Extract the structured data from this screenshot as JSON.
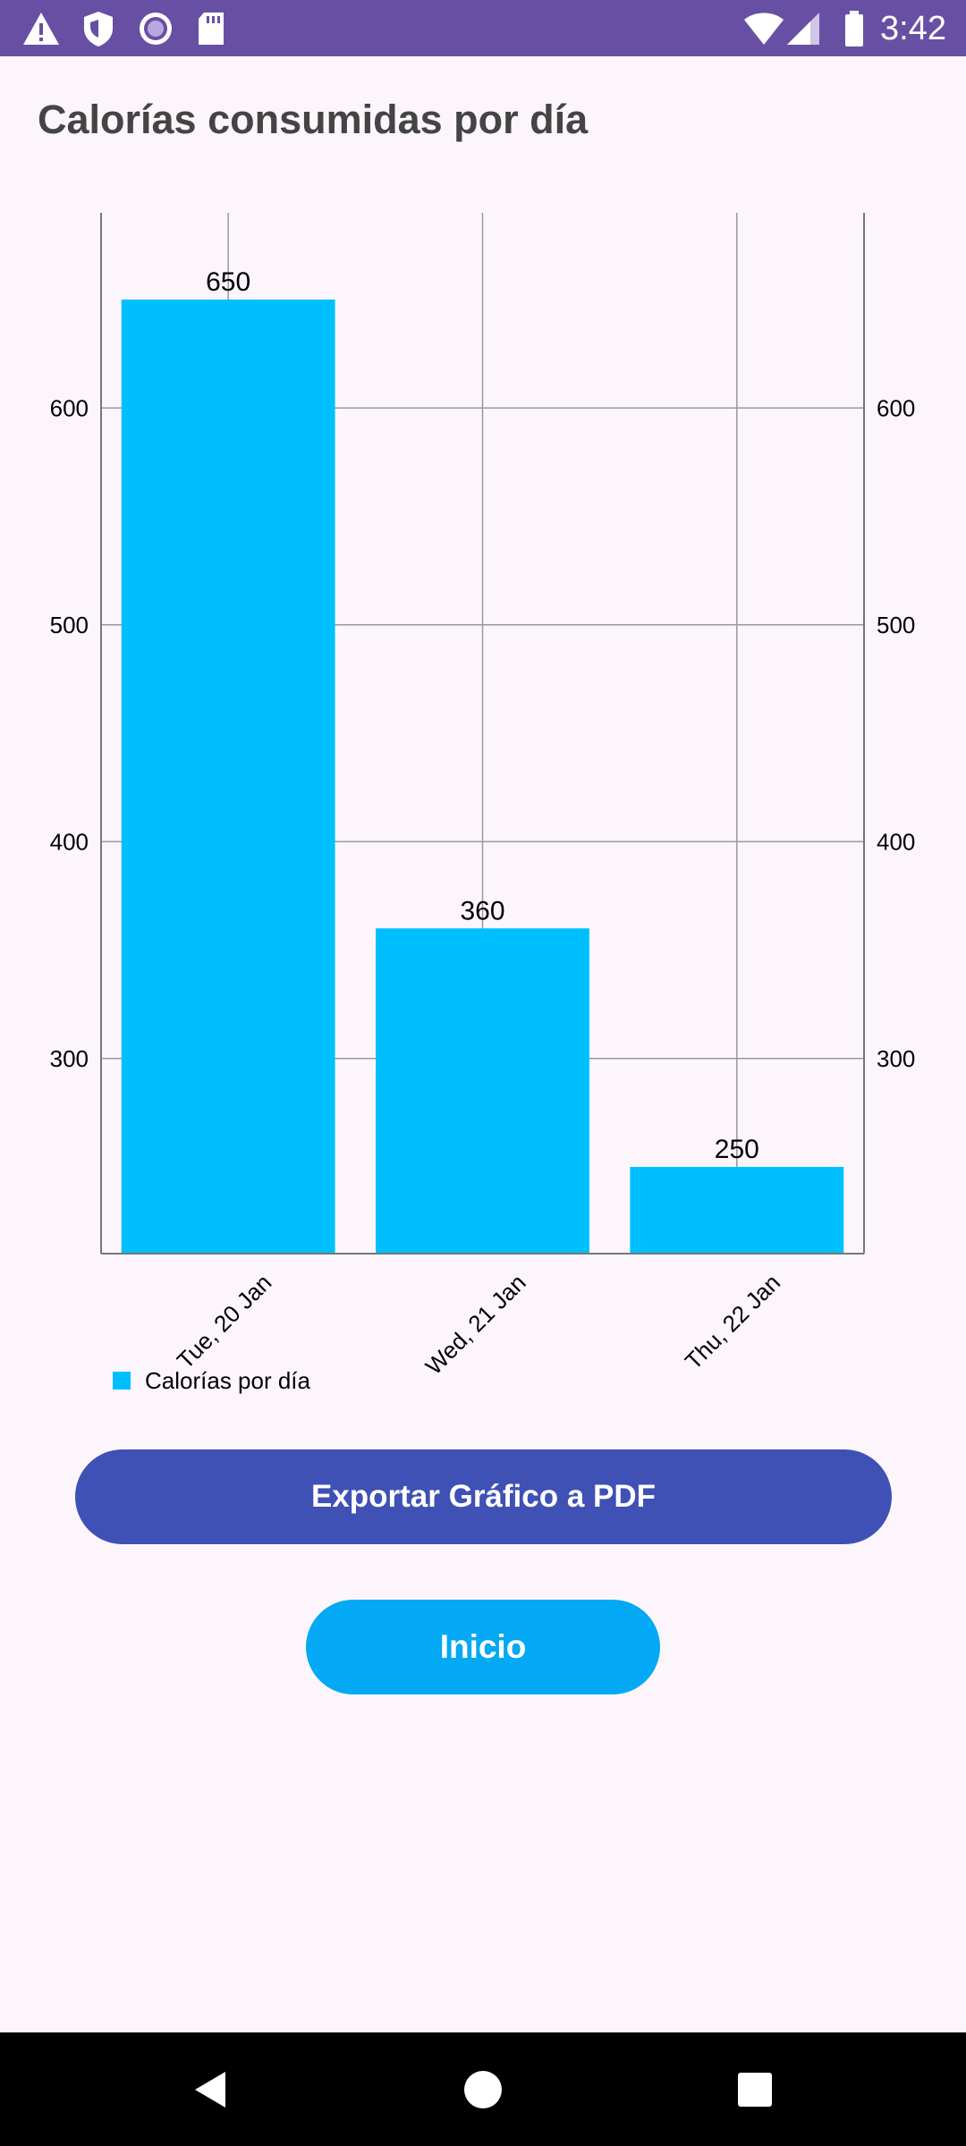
{
  "status_bar": {
    "time": "3:42",
    "icons_left": [
      "warning-icon",
      "shield-icon",
      "circle-record-icon",
      "sd-card-icon"
    ],
    "icons_right": [
      "wifi-icon",
      "cellular-signal-icon",
      "battery-icon"
    ],
    "background": "#6750a4"
  },
  "page": {
    "title": "Calorías consumidas por día"
  },
  "chart_data": {
    "type": "bar",
    "categories": [
      "Tue, 20 Jan",
      "Wed, 21 Jan",
      "Thu, 22 Jan"
    ],
    "series": [
      {
        "name": "Calorías por día",
        "values": [
          650,
          360,
          250
        ],
        "color": "#00bfff"
      }
    ],
    "data_labels": [
      "650",
      "360",
      "250"
    ],
    "y_ticks": [
      300,
      400,
      500,
      600
    ],
    "y_tick_labels": [
      "300",
      "400",
      "500",
      "600"
    ],
    "ylim": [
      210,
      690
    ],
    "y_axis_left": true,
    "y_axis_right": true,
    "grid": true,
    "legend_position": "bottom-left",
    "title": "",
    "xlabel": "",
    "ylabel": ""
  },
  "buttons": {
    "export_label": "Exportar Gráfico a PDF",
    "home_label": "Inicio",
    "export_color": "#3f51b5",
    "home_color": "#03a9f4"
  },
  "nav_bar": {
    "icons": [
      "back-icon",
      "home-icon",
      "recents-icon"
    ]
  }
}
